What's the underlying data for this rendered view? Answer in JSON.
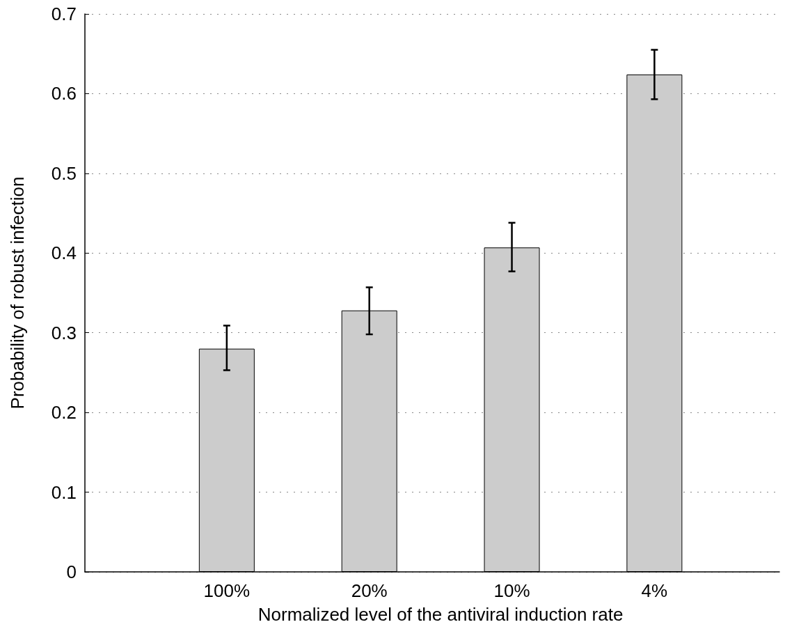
{
  "chart_data": {
    "type": "bar",
    "xlabel": "Normalized level of the antiviral induction rate",
    "ylabel": "Probability of robust infection",
    "categories": [
      "100%",
      "20%",
      "10%",
      "4%"
    ],
    "values": [
      0.28,
      0.328,
      0.407,
      0.624
    ],
    "errors": [
      [
        0.253,
        0.309
      ],
      [
        0.298,
        0.357
      ],
      [
        0.377,
        0.438
      ],
      [
        0.593,
        0.655
      ]
    ],
    "color": "#cccccc",
    "ylim": [
      0,
      0.7
    ],
    "yticks": [
      0,
      0.1,
      0.2,
      0.3,
      0.4,
      0.5,
      0.6,
      0.7
    ],
    "grid": "y"
  }
}
